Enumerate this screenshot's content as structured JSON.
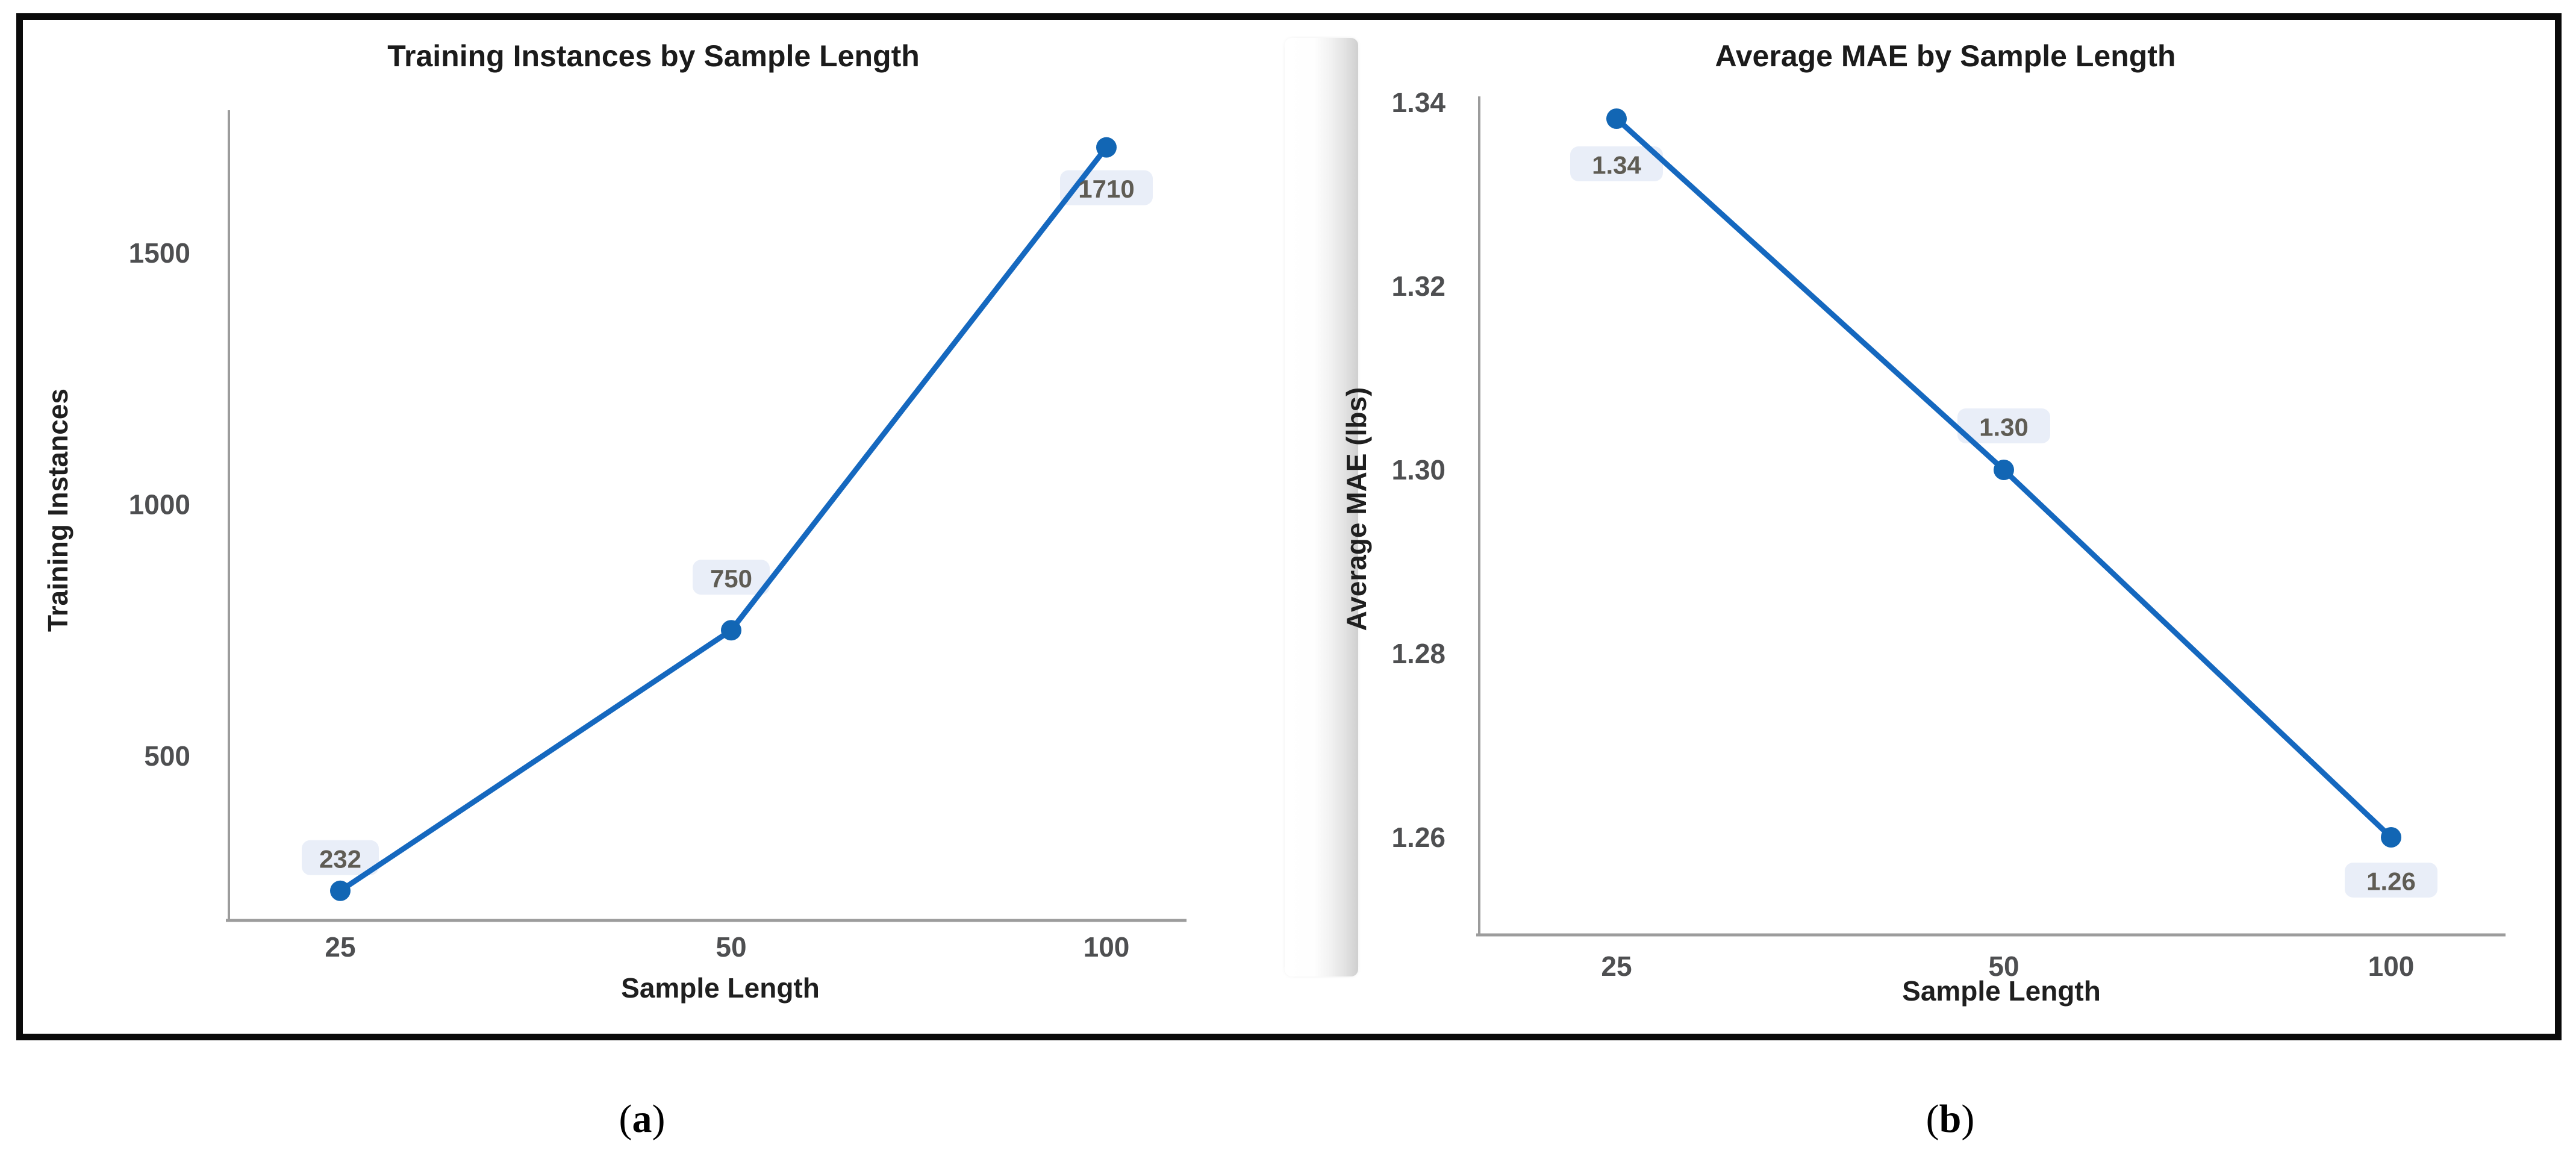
{
  "figure": {
    "paren_open": "(",
    "paren_close": ")",
    "caption_a_letter": "a",
    "caption_b_letter": "b"
  },
  "chart_data": [
    {
      "type": "line",
      "title": "Training Instances by Sample Length",
      "xlabel": "Sample Length",
      "ylabel": "Training Instances",
      "x_tick_labels": [
        "25",
        "50",
        "100"
      ],
      "x_values": [
        25,
        50,
        100
      ],
      "values": [
        232,
        750,
        1710
      ],
      "value_labels": [
        "232",
        "750",
        "1710"
      ],
      "yticks": [
        {
          "v": 500,
          "label": "500"
        },
        {
          "v": 1000,
          "label": "1000"
        },
        {
          "v": 1500,
          "label": "1500"
        }
      ],
      "ylim": [
        170,
        1790
      ],
      "grid": false,
      "legend_position": "none",
      "label_placement": [
        "above",
        "above",
        "below"
      ],
      "line_color": "#1568bf",
      "point_color": "#1266b4",
      "label_box_color": "#e9eef8",
      "label_text_color": "#5f5c54",
      "tick_color": "#4e4f51",
      "axis_color": "#9c9c9c"
    },
    {
      "type": "line",
      "title": "Average MAE by Sample Length",
      "xlabel": "Sample Length",
      "ylabel": "Average MAE (lbs)",
      "x_tick_labels": [
        "25",
        "50",
        "100"
      ],
      "x_values": [
        25,
        50,
        100
      ],
      "values": [
        1.34,
        1.3,
        1.26
      ],
      "value_labels": [
        "1.34",
        "1.30",
        "1.26"
      ],
      "yticks": [
        {
          "v": 1.26,
          "label": "1.26"
        },
        {
          "v": 1.28,
          "label": "1.28"
        },
        {
          "v": 1.3,
          "label": "1.30"
        },
        {
          "v": 1.32,
          "label": "1.32"
        },
        {
          "v": 1.34,
          "label": "1.34"
        }
      ],
      "ylim": [
        1.252,
        1.341
      ],
      "grid": false,
      "legend_position": "none",
      "label_placement": [
        "below",
        "above",
        "below"
      ],
      "line_color": "#1568bf",
      "point_color": "#1266b4",
      "label_box_color": "#e9eef8",
      "label_text_color": "#5f5c54",
      "tick_color": "#4e4f51",
      "axis_color": "#9c9c9c"
    }
  ]
}
